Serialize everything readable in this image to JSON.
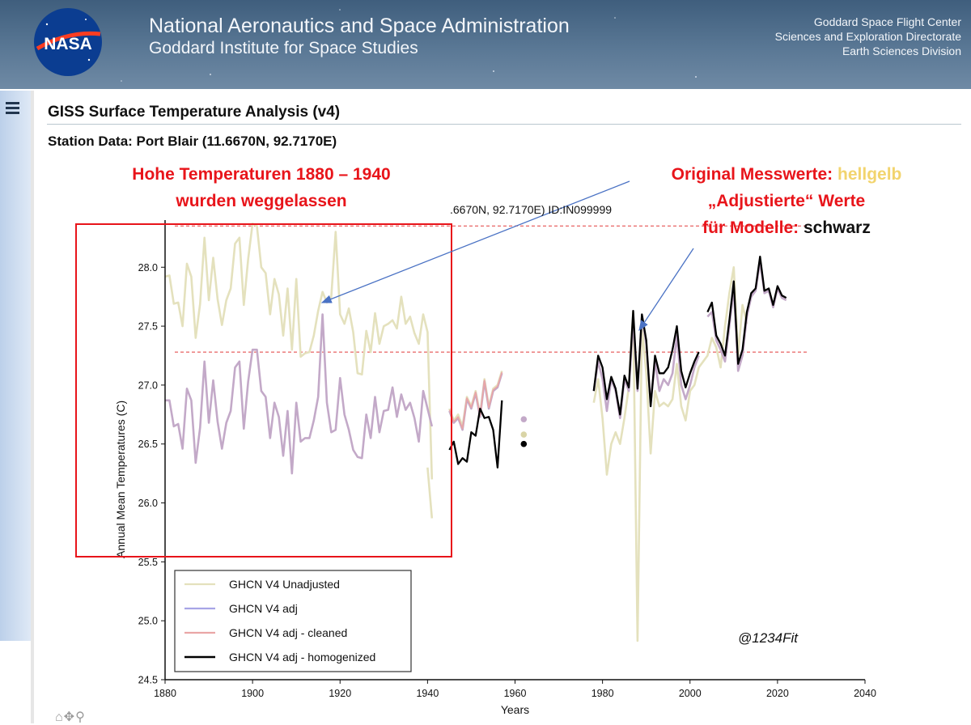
{
  "header": {
    "title": "National Aeronautics and Space Administration",
    "subtitle": "Goddard Institute for Space Studies",
    "logo_text": "NASA",
    "center_lines": [
      "Goddard Space Flight Center",
      "Sciences and Exploration Directorate",
      "Earth Sciences Division"
    ]
  },
  "page": {
    "title": "GISS Surface Temperature Analysis (v4)",
    "station": "Station Data: Port Blair (11.6670N, 92.7170E)",
    "plot_title_fragment": ".6670N, 92.7170E) ID:IN099999"
  },
  "annotations": {
    "left_line1": "Hohe Temperaturen 1880 – 1940",
    "left_line2": "wurden weggelassen",
    "right_line1_prefix": "Original Messwerte: ",
    "right_line1_highlight": "hellgelb",
    "right_line2": "„Adjustierte“ Werte",
    "right_line3_prefix": "für Modelle: ",
    "right_line3_highlight": "schwarz",
    "watermark": "@1234Fit"
  },
  "colors": {
    "unadjusted": "#e4e1bd",
    "adj": "#a7a4e6",
    "cleaned": "#eaa6a6",
    "homogenized": "#000000",
    "adj_overlap": "#c3a9c8",
    "annotation_red": "#e8141a",
    "arrow_blue": "#4a72c4"
  },
  "chart_data": {
    "type": "line",
    "xlabel": "Years",
    "ylabel": "Annual Mean Temperatures (C)",
    "xlim": [
      1880,
      2040
    ],
    "ylim": [
      24.5,
      28.4
    ],
    "xticks": [
      1880,
      1900,
      1920,
      1940,
      1960,
      1980,
      2000,
      2020,
      2040
    ],
    "yticks": [
      24.5,
      25.0,
      25.5,
      26.0,
      26.5,
      27.0,
      27.5,
      28.0
    ],
    "reference_lines": [
      28.35,
      27.28
    ],
    "legend": [
      "GHCN V4 Unadjusted",
      "GHCN V4 adj",
      "GHCN V4 adj - cleaned",
      "GHCN V4 adj - homogenized"
    ],
    "series": [
      {
        "name": "GHCN V4 Unadjusted",
        "segments": [
          {
            "x": [
              1880,
              1881,
              1882,
              1883,
              1884,
              1885,
              1886,
              1887,
              1888,
              1889,
              1890,
              1891,
              1892,
              1893,
              1894,
              1895,
              1896,
              1897,
              1898,
              1899,
              1900,
              1901,
              1902,
              1903,
              1904,
              1905,
              1906,
              1907,
              1908,
              1909,
              1910,
              1911,
              1912,
              1913,
              1914,
              1915,
              1916,
              1917,
              1918,
              1919,
              1920,
              1921,
              1922,
              1923,
              1924,
              1925,
              1926,
              1927,
              1928,
              1929,
              1930,
              1931,
              1932,
              1933,
              1934,
              1935,
              1936,
              1937,
              1938,
              1939,
              1940,
              1941
            ],
            "y": [
              27.92,
              27.93,
              27.69,
              27.7,
              27.5,
              28.03,
              27.92,
              27.4,
              27.69,
              28.25,
              27.72,
              28.08,
              27.73,
              27.51,
              27.72,
              27.82,
              28.2,
              28.25,
              27.68,
              28.07,
              28.37,
              28.35,
              28.0,
              27.95,
              27.6,
              27.9,
              27.77,
              27.42,
              27.82,
              27.3,
              27.9,
              27.24,
              27.27,
              27.28,
              27.42,
              27.63,
              27.79,
              27.7,
              27.75,
              28.3,
              27.6,
              27.52,
              27.65,
              27.45,
              27.1,
              27.09,
              27.46,
              27.28,
              27.61,
              27.35,
              27.5,
              27.52,
              27.55,
              27.48,
              27.75,
              27.52,
              27.58,
              27.44,
              27.35,
              27.6,
              27.45,
              26.2
            ]
          },
          {
            "x": [
              1940,
              1941
            ],
            "y": [
              26.3,
              25.87
            ]
          },
          {
            "x": [
              1945,
              1946,
              1947,
              1948,
              1949,
              1950,
              1951,
              1952,
              1953,
              1954,
              1955,
              1956,
              1957
            ],
            "y": [
              26.8,
              26.7,
              26.75,
              26.65,
              26.9,
              26.82,
              26.95,
              26.75,
              27.05,
              26.82,
              26.97,
              27.0,
              27.12
            ]
          },
          {
            "x": [
              1978,
              1979,
              1980,
              1981,
              1982,
              1983,
              1984,
              1985,
              1986,
              1987,
              1988,
              1989,
              1990,
              1991,
              1992,
              1993,
              1994,
              1995,
              1996,
              1997,
              1998,
              1999,
              2000,
              2001,
              2002,
              2003,
              2004,
              2005,
              2006,
              2007,
              2008,
              2009,
              2010,
              2011,
              2012,
              2013
            ],
            "y": [
              26.85,
              27.05,
              26.72,
              26.24,
              26.5,
              26.6,
              26.5,
              26.72,
              26.98,
              27.62,
              24.83,
              27.5,
              27.1,
              26.42,
              26.95,
              26.82,
              26.85,
              26.82,
              26.88,
              27.18,
              26.82,
              26.7,
              26.95,
              27.0,
              27.15,
              27.2,
              27.25,
              27.4,
              27.32,
              27.15,
              27.5,
              27.78,
              28.0,
              27.25,
              27.68,
              27.52
            ]
          }
        ]
      },
      {
        "name": "GHCN V4 adj",
        "segments": [
          {
            "x": [
              1880,
              1881,
              1882,
              1883,
              1884,
              1885,
              1886,
              1887,
              1888,
              1889,
              1890,
              1891,
              1892,
              1893,
              1894,
              1895,
              1896,
              1897,
              1898,
              1899,
              1900,
              1901,
              1902,
              1903,
              1904,
              1905,
              1906,
              1907,
              1908,
              1909,
              1910,
              1911,
              1912,
              1913,
              1914,
              1915,
              1916,
              1917,
              1918,
              1919,
              1920,
              1921,
              1922,
              1923,
              1924,
              1925,
              1926,
              1927,
              1928,
              1929,
              1930,
              1931,
              1932,
              1933,
              1934,
              1935,
              1936,
              1937,
              1938,
              1939,
              1940,
              1941
            ],
            "y": [
              26.87,
              26.87,
              26.65,
              26.67,
              26.46,
              26.97,
              26.87,
              26.34,
              26.64,
              27.2,
              26.68,
              27.04,
              26.69,
              26.46,
              26.68,
              26.78,
              27.15,
              27.2,
              26.63,
              27.03,
              27.3,
              27.3,
              26.95,
              26.9,
              26.55,
              26.85,
              26.73,
              26.4,
              26.78,
              26.25,
              26.85,
              26.52,
              26.55,
              26.55,
              26.7,
              26.9,
              27.6,
              26.85,
              26.6,
              26.62,
              27.06,
              26.75,
              26.62,
              26.45,
              26.39,
              26.38,
              26.75,
              26.55,
              26.9,
              26.6,
              26.78,
              26.79,
              26.98,
              26.73,
              26.92,
              26.79,
              26.85,
              26.72,
              26.52,
              26.95,
              26.8,
              26.65
            ]
          },
          {
            "x": [
              1945,
              1946,
              1947,
              1948,
              1949,
              1950,
              1951,
              1952,
              1953,
              1954,
              1955,
              1956,
              1957
            ],
            "y": [
              26.78,
              26.68,
              26.72,
              26.62,
              26.88,
              26.8,
              26.93,
              26.73,
              27.03,
              26.8,
              26.95,
              26.98,
              27.1
            ]
          },
          {
            "x": [
              1978,
              1979,
              1980,
              1981,
              1982,
              1983,
              1984,
              1985,
              1986,
              1987,
              1988,
              1989,
              1990,
              1991,
              1992,
              1993,
              1994,
              1995,
              1996,
              1997,
              1998,
              1999,
              2000,
              2001,
              2002
            ],
            "y": [
              26.95,
              27.2,
              27.05,
              26.78,
              27.05,
              26.95,
              26.72,
              27.05,
              26.95,
              27.55,
              26.95,
              27.58,
              27.35,
              26.85,
              27.2,
              26.95,
              27.05,
              27.0,
              27.1,
              27.42,
              27.0,
              26.88,
              27.0,
              27.15,
              27.25
            ]
          },
          {
            "x": [
              2004,
              2005,
              2006,
              2007,
              2008,
              2009,
              2010,
              2011,
              2012,
              2013,
              2014,
              2015,
              2016,
              2017,
              2018,
              2019,
              2020,
              2021,
              2022
            ],
            "y": [
              27.58,
              27.62,
              27.38,
              27.3,
              27.2,
              27.5,
              27.82,
              27.12,
              27.25,
              27.58,
              27.75,
              27.8,
              28.05,
              27.78,
              27.8,
              27.66,
              27.82,
              27.74,
              27.72
            ]
          }
        ]
      },
      {
        "name": "GHCN V4 adj - cleaned",
        "segments": [
          {
            "x": [
              1945,
              1946,
              1947,
              1948,
              1949,
              1950,
              1951,
              1952,
              1953,
              1954,
              1955,
              1956,
              1957
            ],
            "y": [
              26.79,
              26.69,
              26.73,
              26.63,
              26.89,
              26.81,
              26.94,
              26.74,
              27.04,
              26.81,
              26.96,
              26.99,
              27.11
            ]
          }
        ],
        "points": [
          {
            "x": 1962,
            "y": 26.71
          }
        ]
      },
      {
        "name": "GHCN V4 adj - homogenized",
        "segments": [
          {
            "x": [
              1945,
              1946,
              1947,
              1948,
              1949,
              1950,
              1951,
              1952,
              1953,
              1954,
              1955,
              1956,
              1957
            ],
            "y": [
              26.45,
              26.52,
              26.33,
              26.38,
              26.35,
              26.6,
              26.57,
              26.8,
              26.72,
              26.73,
              26.62,
              26.3,
              26.87
            ]
          },
          {
            "x": [
              1978,
              1979,
              1980,
              1981,
              1982,
              1983,
              1984,
              1985,
              1986,
              1987,
              1988,
              1989,
              1990,
              1991,
              1992,
              1993,
              1994,
              1995,
              1996,
              1997,
              1998,
              1999,
              2000,
              2001,
              2002
            ],
            "y": [
              26.95,
              27.25,
              27.15,
              26.88,
              27.07,
              26.97,
              26.75,
              27.08,
              26.98,
              27.63,
              26.97,
              27.6,
              27.38,
              26.82,
              27.25,
              27.1,
              27.1,
              27.15,
              27.3,
              27.5,
              27.12,
              26.98,
              27.1,
              27.2,
              27.28
            ]
          },
          {
            "x": [
              2004,
              2005,
              2006,
              2007,
              2008,
              2009,
              2010,
              2011,
              2012,
              2013,
              2014,
              2015,
              2016,
              2017,
              2018,
              2019,
              2020,
              2021,
              2022
            ],
            "y": [
              27.62,
              27.7,
              27.42,
              27.35,
              27.25,
              27.55,
              27.88,
              27.18,
              27.3,
              27.62,
              27.78,
              27.82,
              28.09,
              27.8,
              27.82,
              27.68,
              27.84,
              27.76,
              27.74
            ]
          }
        ],
        "points": [
          {
            "x": 1962,
            "y": 26.5
          }
        ]
      },
      {
        "name": "GHCN V4 Unadjusted point",
        "points": [
          {
            "x": 1962,
            "y": 26.58
          }
        ]
      }
    ]
  }
}
